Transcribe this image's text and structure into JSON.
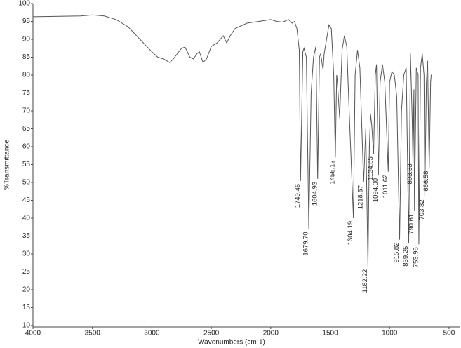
{
  "chart_data": {
    "type": "line",
    "xlabel": "Wavenumbers (cm-1)",
    "ylabel": "%Transmittance",
    "xlim": [
      4000,
      411
    ],
    "ylim": [
      9.6,
      100
    ],
    "xticks": [
      4000,
      3500,
      3000,
      2500,
      2000,
      1500,
      1000,
      500
    ],
    "yticks": [
      10,
      15,
      20,
      25,
      30,
      35,
      40,
      45,
      50,
      55,
      60,
      65,
      70,
      75,
      80,
      85,
      90,
      95,
      100
    ],
    "color": "#555555",
    "x": [
      4000,
      3600,
      3500,
      3400,
      3300,
      3200,
      3100,
      3000,
      2950,
      2900,
      2850,
      2820,
      2750,
      2720,
      2680,
      2650,
      2620,
      2600,
      2570,
      2540,
      2500,
      2450,
      2400,
      2370,
      2340,
      2300,
      2200,
      2100,
      2000,
      1950,
      1900,
      1850,
      1820,
      1800,
      1780,
      1760,
      1749.46,
      1730,
      1720,
      1700,
      1679.7,
      1660,
      1640,
      1620,
      1604.93,
      1590,
      1580,
      1560,
      1550,
      1530,
      1510,
      1490,
      1470,
      1456.13,
      1445,
      1440,
      1420,
      1400,
      1380,
      1360,
      1340,
      1304.19,
      1290,
      1270,
      1250,
      1218.57,
      1200,
      1182.22,
      1170,
      1160,
      1150,
      1134.85,
      1120,
      1110,
      1094,
      1080,
      1060,
      1040,
      1011.62,
      1000,
      980,
      960,
      940,
      915.82,
      900,
      880,
      860,
      839.25,
      825,
      810,
      803.33,
      795,
      790.61,
      775,
      760,
      753.95,
      740,
      725,
      710,
      703.82,
      690,
      680,
      666.58,
      655,
      650,
      645
    ],
    "values": [
      96.3,
      96.5,
      96.8,
      96.5,
      95.5,
      93.5,
      90,
      86.5,
      85,
      84.5,
      83.5,
      84.5,
      87.5,
      87.8,
      85,
      84.5,
      86,
      86.5,
      83.5,
      84.5,
      88,
      89,
      91,
      89,
      91,
      93,
      94.5,
      95,
      95.5,
      95,
      94.8,
      95.5,
      94.5,
      95,
      93,
      87,
      50.4,
      86.5,
      87.5,
      85,
      37,
      75,
      85,
      88,
      51,
      85,
      86,
      81.5,
      86,
      90,
      94,
      93,
      80,
      57,
      80,
      78.5,
      68,
      87,
      91,
      88,
      70,
      40,
      80,
      87,
      82,
      50,
      65,
      26.5,
      60,
      69,
      66,
      58,
      80,
      83,
      52,
      78,
      83,
      78,
      53,
      78,
      81,
      80,
      74,
      34,
      70,
      80,
      82,
      33,
      86,
      68,
      56,
      76,
      42,
      82,
      80,
      32.7,
      82,
      86,
      80,
      46,
      78,
      84,
      54,
      78,
      80,
      80
    ],
    "peaks": [
      {
        "value": 1749.46,
        "label": "1749.46"
      },
      {
        "value": 1679.7,
        "label": "1679.70"
      },
      {
        "value": 1604.93,
        "label": "1604.93"
      },
      {
        "value": 1456.13,
        "label": "1456.13"
      },
      {
        "value": 1304.19,
        "label": "1304.19"
      },
      {
        "value": 1218.57,
        "label": "1218.57"
      },
      {
        "value": 1182.22,
        "label": "1182.22"
      },
      {
        "value": 1134.85,
        "label": "1134.85"
      },
      {
        "value": 1094,
        "label": "1094.00"
      },
      {
        "value": 1011.62,
        "label": "1011.62"
      },
      {
        "value": 915.82,
        "label": "915.82"
      },
      {
        "value": 839.25,
        "label": "839.25"
      },
      {
        "value": 803.33,
        "label": "803.33"
      },
      {
        "value": 790.61,
        "label": "790.61"
      },
      {
        "value": 753.95,
        "label": "753.95"
      },
      {
        "value": 703.82,
        "label": "703.82"
      },
      {
        "value": 666.58,
        "label": "666.58"
      }
    ]
  }
}
